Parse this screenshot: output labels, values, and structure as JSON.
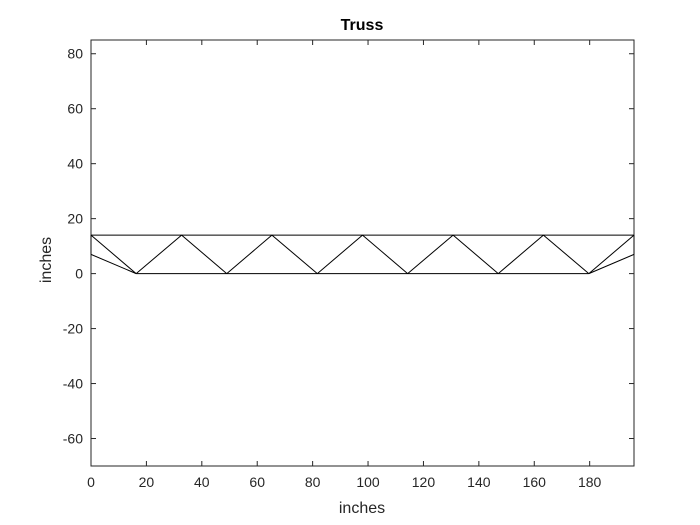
{
  "chart_data": {
    "type": "line",
    "title": "Truss",
    "xlabel": "inches",
    "ylabel": "inches",
    "xlim": [
      0,
      196
    ],
    "ylim": [
      -70,
      85
    ],
    "xticks": [
      0,
      20,
      40,
      60,
      80,
      100,
      120,
      140,
      160,
      180
    ],
    "yticks": [
      -60,
      -40,
      -20,
      0,
      20,
      40,
      60,
      80
    ],
    "xtick_labels": [
      "0",
      "20",
      "40",
      "60",
      "80",
      "100",
      "120",
      "140",
      "160",
      "180"
    ],
    "ytick_labels": [
      "-60",
      "-40",
      "-20",
      "0",
      "20",
      "40",
      "60",
      "80"
    ],
    "grid": false,
    "line_color": "#000000",
    "axis_color": "#262626",
    "members": [
      {
        "x": [
          0,
          196
        ],
        "y": [
          14,
          14
        ]
      },
      {
        "x": [
          0,
          0
        ],
        "y": [
          14,
          7
        ]
      },
      {
        "x": [
          196,
          196
        ],
        "y": [
          14,
          7
        ]
      },
      {
        "x": [
          0,
          16.3
        ],
        "y": [
          7,
          0
        ]
      },
      {
        "x": [
          179.7,
          196
        ],
        "y": [
          0,
          7
        ]
      },
      {
        "x": [
          16.3,
          179.7
        ],
        "y": [
          0,
          0
        ]
      },
      {
        "x": [
          0,
          16.3
        ],
        "y": [
          14,
          0
        ]
      },
      {
        "x": [
          16.3,
          32.7
        ],
        "y": [
          0,
          14
        ]
      },
      {
        "x": [
          32.7,
          49.0
        ],
        "y": [
          14,
          0
        ]
      },
      {
        "x": [
          49.0,
          65.3
        ],
        "y": [
          0,
          14
        ]
      },
      {
        "x": [
          65.3,
          81.7
        ],
        "y": [
          14,
          0
        ]
      },
      {
        "x": [
          81.7,
          98.0
        ],
        "y": [
          0,
          14
        ]
      },
      {
        "x": [
          98.0,
          114.3
        ],
        "y": [
          14,
          0
        ]
      },
      {
        "x": [
          114.3,
          130.7
        ],
        "y": [
          0,
          14
        ]
      },
      {
        "x": [
          130.7,
          147.0
        ],
        "y": [
          14,
          0
        ]
      },
      {
        "x": [
          147.0,
          163.3
        ],
        "y": [
          0,
          14
        ]
      },
      {
        "x": [
          163.3,
          179.7
        ],
        "y": [
          14,
          0
        ]
      },
      {
        "x": [
          179.7,
          196
        ],
        "y": [
          0,
          14
        ]
      }
    ]
  }
}
